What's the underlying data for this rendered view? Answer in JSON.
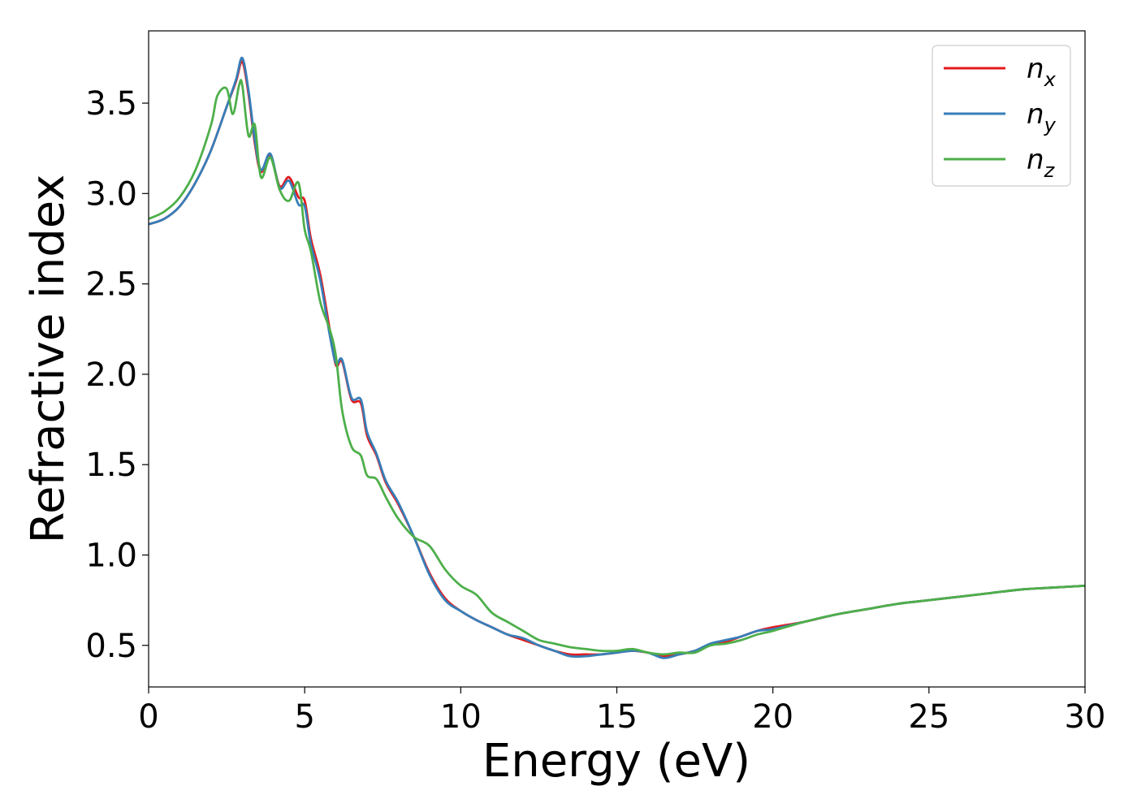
{
  "chart_data": {
    "type": "line",
    "title": "",
    "xlabel": "Energy (eV)",
    "ylabel": "Refractive index",
    "xlim": [
      0,
      30
    ],
    "ylim": [
      0.27,
      3.9
    ],
    "xticks": [
      0,
      5,
      10,
      15,
      20,
      25,
      30
    ],
    "xtick_labels": [
      "0",
      "5",
      "10",
      "15",
      "20",
      "25",
      "30"
    ],
    "yticks": [
      0.5,
      1.0,
      1.5,
      2.0,
      2.5,
      3.0,
      3.5
    ],
    "ytick_labels": [
      "0.5",
      "1.0",
      "1.5",
      "2.0",
      "2.5",
      "3.0",
      "3.5"
    ],
    "grid": false,
    "legend_position": "top-right",
    "series": [
      {
        "name": "n",
        "subscript": "x",
        "color": "#e41a1c",
        "x": [
          0,
          0.5,
          1.0,
          1.5,
          2.0,
          2.5,
          2.8,
          3.0,
          3.2,
          3.4,
          3.6,
          3.9,
          4.2,
          4.5,
          4.8,
          5.0,
          5.2,
          5.5,
          5.8,
          6.0,
          6.2,
          6.5,
          6.8,
          7.0,
          7.3,
          7.6,
          8.0,
          8.5,
          9.0,
          9.5,
          10.0,
          10.5,
          11.0,
          11.5,
          12.0,
          12.5,
          13.0,
          13.5,
          14.0,
          14.5,
          15.0,
          15.5,
          16.0,
          16.5,
          17.0,
          17.5,
          18.0,
          18.5,
          19.0,
          19.5,
          20.0,
          21.0,
          22.0,
          23.0,
          24.0,
          25.0,
          26.0,
          27.0,
          28.0,
          29.0,
          30.0
        ],
        "y": [
          2.83,
          2.86,
          2.93,
          3.06,
          3.24,
          3.48,
          3.62,
          3.73,
          3.55,
          3.28,
          3.12,
          3.21,
          3.04,
          3.09,
          2.98,
          2.96,
          2.75,
          2.55,
          2.25,
          2.05,
          2.07,
          1.86,
          1.84,
          1.66,
          1.55,
          1.4,
          1.28,
          1.1,
          0.9,
          0.76,
          0.69,
          0.64,
          0.6,
          0.56,
          0.53,
          0.5,
          0.47,
          0.45,
          0.45,
          0.45,
          0.46,
          0.47,
          0.46,
          0.44,
          0.45,
          0.47,
          0.5,
          0.52,
          0.55,
          0.58,
          0.6,
          0.63,
          0.67,
          0.7,
          0.73,
          0.75,
          0.77,
          0.79,
          0.81,
          0.82,
          0.83
        ]
      },
      {
        "name": "n",
        "subscript": "y",
        "color": "#377eb8",
        "x": [
          0,
          0.5,
          1.0,
          1.5,
          2.0,
          2.5,
          2.8,
          3.0,
          3.2,
          3.4,
          3.6,
          3.9,
          4.2,
          4.5,
          4.8,
          5.0,
          5.2,
          5.5,
          5.8,
          6.0,
          6.2,
          6.5,
          6.8,
          7.0,
          7.3,
          7.6,
          8.0,
          8.5,
          9.0,
          9.5,
          10.0,
          10.5,
          11.0,
          11.5,
          12.0,
          12.5,
          13.0,
          13.5,
          14.0,
          14.5,
          15.0,
          15.5,
          16.0,
          16.5,
          17.0,
          17.5,
          18.0,
          18.5,
          19.0,
          19.5,
          20.0,
          21.0,
          22.0,
          23.0,
          24.0,
          25.0,
          26.0,
          27.0,
          28.0,
          29.0,
          30.0
        ],
        "y": [
          2.83,
          2.86,
          2.93,
          3.06,
          3.24,
          3.48,
          3.63,
          3.75,
          3.57,
          3.3,
          3.13,
          3.22,
          3.03,
          3.07,
          2.94,
          2.93,
          2.72,
          2.52,
          2.22,
          2.06,
          2.08,
          1.87,
          1.86,
          1.68,
          1.56,
          1.41,
          1.29,
          1.1,
          0.89,
          0.75,
          0.69,
          0.64,
          0.6,
          0.56,
          0.54,
          0.5,
          0.47,
          0.44,
          0.44,
          0.45,
          0.46,
          0.47,
          0.46,
          0.43,
          0.45,
          0.47,
          0.51,
          0.53,
          0.55,
          0.58,
          0.59,
          0.63,
          0.67,
          0.7,
          0.73,
          0.75,
          0.77,
          0.79,
          0.81,
          0.82,
          0.83
        ]
      },
      {
        "name": "n",
        "subscript": "z",
        "color": "#4daf4a",
        "x": [
          0,
          0.5,
          1.0,
          1.5,
          2.0,
          2.2,
          2.5,
          2.7,
          2.9,
          3.0,
          3.2,
          3.4,
          3.6,
          3.9,
          4.2,
          4.5,
          4.8,
          5.0,
          5.2,
          5.5,
          5.8,
          6.0,
          6.2,
          6.5,
          6.8,
          7.0,
          7.3,
          7.6,
          8.0,
          8.5,
          9.0,
          9.5,
          10.0,
          10.5,
          11.0,
          11.5,
          12.0,
          12.5,
          13.0,
          13.5,
          14.0,
          14.5,
          15.0,
          15.5,
          16.0,
          16.5,
          17.0,
          17.5,
          18.0,
          18.5,
          19.0,
          19.5,
          20.0,
          21.0,
          22.0,
          23.0,
          24.0,
          25.0,
          26.0,
          27.0,
          28.0,
          29.0,
          30.0
        ],
        "y": [
          2.86,
          2.9,
          2.98,
          3.13,
          3.38,
          3.54,
          3.58,
          3.44,
          3.6,
          3.6,
          3.32,
          3.38,
          3.09,
          3.2,
          3.02,
          2.96,
          3.06,
          2.8,
          2.68,
          2.4,
          2.25,
          2.1,
          1.8,
          1.6,
          1.55,
          1.44,
          1.42,
          1.32,
          1.2,
          1.1,
          1.05,
          0.92,
          0.83,
          0.78,
          0.68,
          0.63,
          0.58,
          0.53,
          0.51,
          0.49,
          0.48,
          0.47,
          0.47,
          0.48,
          0.46,
          0.45,
          0.46,
          0.46,
          0.5,
          0.51,
          0.53,
          0.56,
          0.58,
          0.63,
          0.67,
          0.7,
          0.73,
          0.75,
          0.77,
          0.79,
          0.81,
          0.82,
          0.83
        ]
      }
    ]
  }
}
